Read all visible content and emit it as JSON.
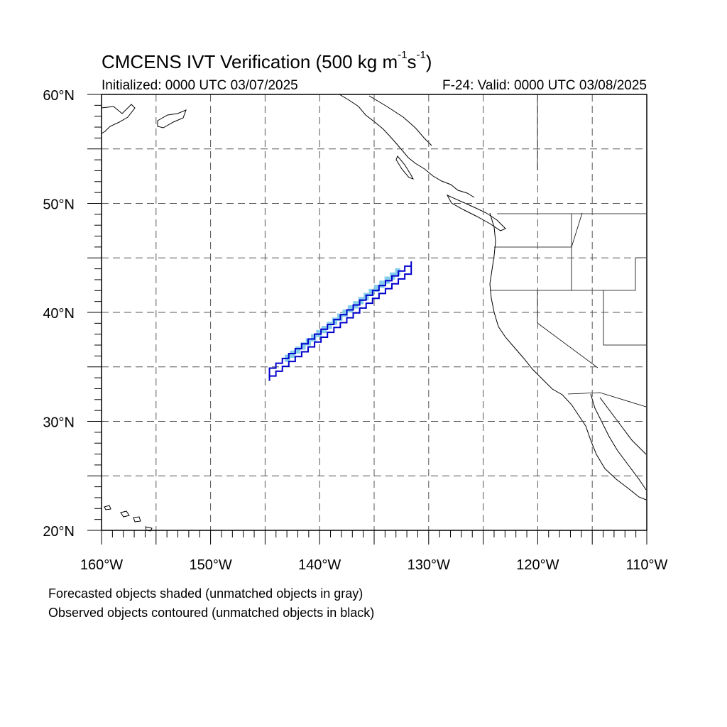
{
  "header": {
    "title_main": "CMCENS IVT Verification (500 kg m",
    "title_sup1": "-1",
    "title_mid": "s",
    "title_sup2": "-1",
    "title_end": ")",
    "initialized": "Initialized: 0000 UTC 03/07/2025",
    "valid": "F-24: Valid: 0000 UTC 03/08/2025"
  },
  "map": {
    "lon_range": [
      -160,
      -110
    ],
    "lat_range": [
      20,
      60
    ],
    "lon_tick_labels": [
      {
        "lon": -160,
        "label": "160°W"
      },
      {
        "lon": -150,
        "label": "150°W"
      },
      {
        "lon": -140,
        "label": "140°W"
      },
      {
        "lon": -130,
        "label": "130°W"
      },
      {
        "lon": -120,
        "label": "120°W"
      },
      {
        "lon": -110,
        "label": "110°W"
      }
    ],
    "lat_tick_labels": [
      {
        "lat": 60,
        "label": "60°N"
      },
      {
        "lat": 50,
        "label": "50°N"
      },
      {
        "lat": 40,
        "label": "40°N"
      },
      {
        "lat": 30,
        "label": "30°N"
      },
      {
        "lat": 20,
        "label": "20°N"
      }
    ],
    "gridline_spacing_deg": 5,
    "gridlines": "dashed",
    "colors": {
      "forecast_shading": "#87ceeb",
      "observed_contour": "#0000cc",
      "coastline": "#000000"
    },
    "forecast_object": {
      "matched": true,
      "from": {
        "lon": -143.2,
        "lat": 35.6
      },
      "to": {
        "lon": -132.6,
        "lat": 43.9
      }
    },
    "observed_object": {
      "matched": true,
      "from": {
        "lon": -144.6,
        "lat": 34.3
      },
      "to": {
        "lon": -131.6,
        "lat": 44.1
      }
    }
  },
  "footer": {
    "note1": "Forecasted objects shaded (unmatched objects in gray)",
    "note2": "Observed objects contoured (unmatched objects in black)"
  }
}
